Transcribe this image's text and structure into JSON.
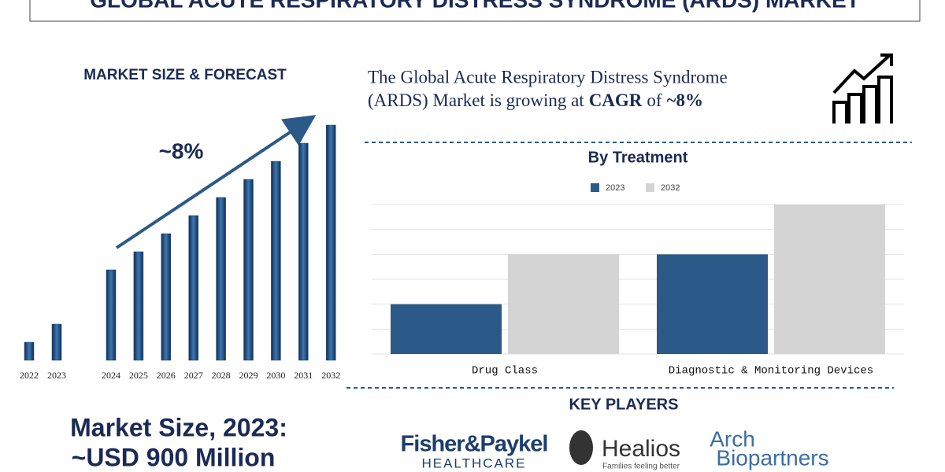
{
  "header": {
    "title": "GLOBAL ACUTE RESPIRATORY DISTRESS SYNDROME (ARDS) MARKET"
  },
  "description": {
    "line1": "The Global Acute Respiratory Distress Syndrome",
    "line2": "(ARDS) Market is growing at",
    "metric": "CAGR",
    "joiner": "of",
    "rate": "~8%"
  },
  "market_size": {
    "label": "Market Size, 2023:",
    "value": "~USD 900 Million"
  },
  "key_players": {
    "title": "KEY PLAYERS",
    "companies": [
      {
        "name": "Fisher&Paykel",
        "tagline": "HEALTHCARE"
      },
      {
        "name": "Healios",
        "tagline": "Families feeling better"
      },
      {
        "name": "Arch",
        "tagline": "Biopartners"
      }
    ]
  },
  "chart_data": [
    {
      "type": "bar",
      "title": "MARKET SIZE & FORECAST",
      "annotation": "~8%",
      "categories": [
        "2022",
        "2023",
        "2024",
        "2025",
        "2026",
        "2027",
        "2028",
        "2029",
        "2030",
        "2031",
        "2032"
      ],
      "values": [
        1,
        2,
        5,
        6,
        7,
        8,
        9,
        10,
        11,
        12,
        13
      ],
      "color": "#1f4f82",
      "ylim": [
        0,
        13
      ]
    },
    {
      "type": "bar",
      "title": "By Treatment",
      "categories": [
        "Drug Class",
        "Diagnostic & Monitoring Devices"
      ],
      "series": [
        {
          "name": "2023",
          "color": "#2b5a88",
          "values": [
            2,
            4
          ]
        },
        {
          "name": "2032",
          "color": "#d4d4d4",
          "values": [
            4,
            6
          ]
        }
      ],
      "ylim": [
        0,
        6
      ],
      "yticks": [
        0,
        1,
        2,
        3,
        4,
        5,
        6
      ],
      "grid": true
    }
  ]
}
